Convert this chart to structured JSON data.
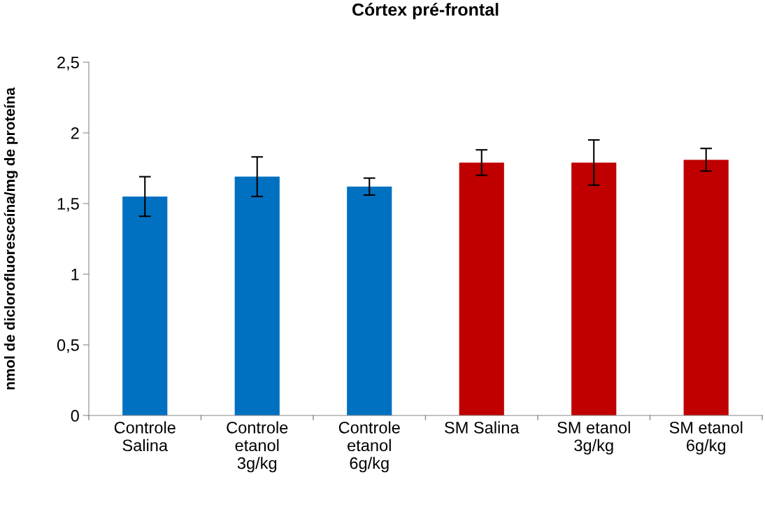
{
  "chart_data": {
    "type": "bar",
    "title": "Córtex pré-frontal",
    "ylabel": "nmol de diclorofluoresceína/mg de proteína",
    "categories": [
      "Controle\nSalina",
      "Controle\netanol\n3g/kg",
      "Controle\netanol\n6g/kg",
      "SM Salina",
      "SM etanol\n3g/kg",
      "SM etanol\n6g/kg"
    ],
    "values": [
      1.55,
      1.69,
      1.62,
      1.79,
      1.79,
      1.81
    ],
    "errors": [
      0.14,
      0.14,
      0.06,
      0.09,
      0.16,
      0.08
    ],
    "colors": [
      "#0070c0",
      "#0070c0",
      "#0070c0",
      "#c00000",
      "#c00000",
      "#c00000"
    ],
    "ylim": [
      0,
      2.5
    ],
    "yticks": [
      {
        "value": 0,
        "label": "0"
      },
      {
        "value": 0.5,
        "label": "0,5"
      },
      {
        "value": 1,
        "label": "1"
      },
      {
        "value": 1.5,
        "label": "1,5"
      },
      {
        "value": 2,
        "label": "2"
      },
      {
        "value": 2.5,
        "label": "2,5"
      }
    ],
    "grid": false,
    "legend": false
  }
}
